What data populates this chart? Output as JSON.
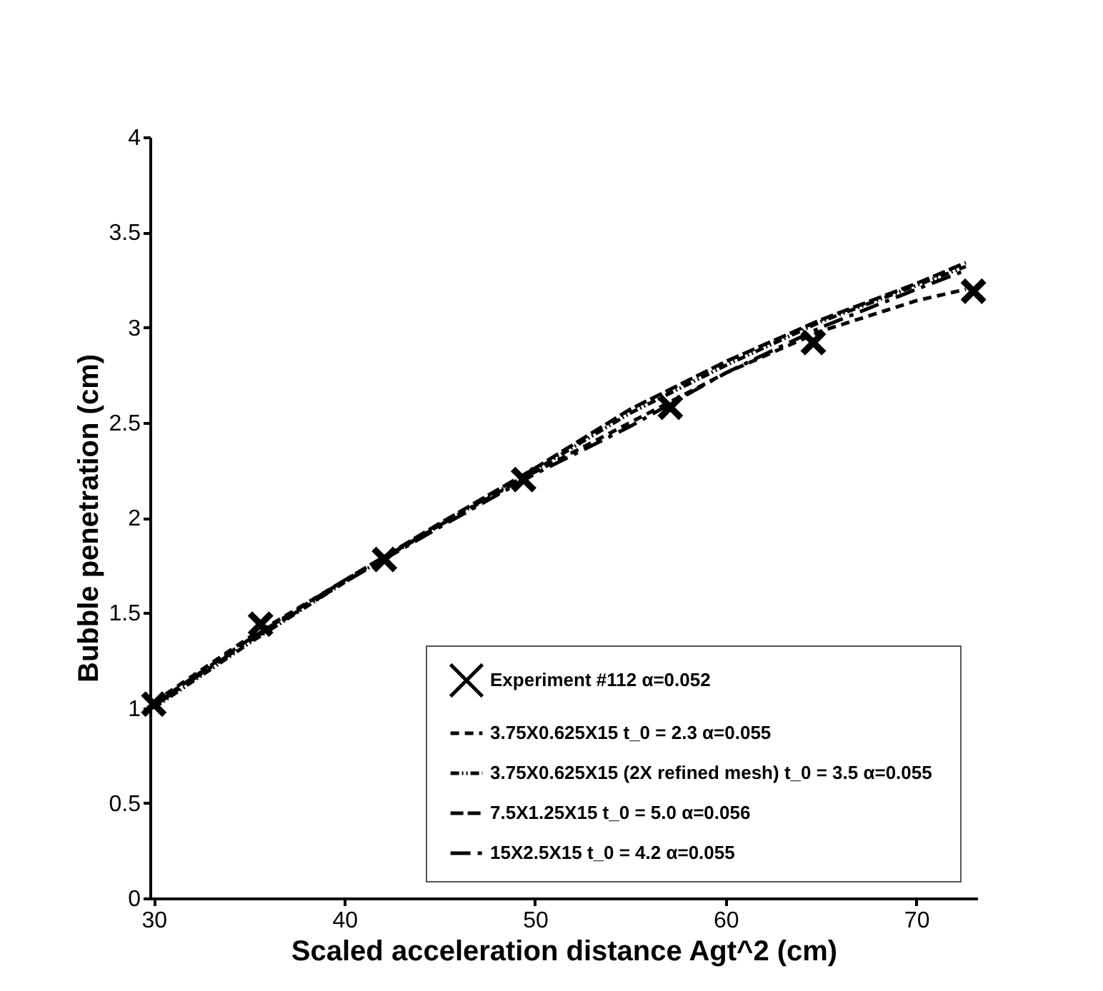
{
  "chart_data": {
    "type": "line",
    "xlabel": "Scaled acceleration distance Agt^2 (cm)",
    "ylabel": "Bubble penetration (cm)",
    "xlim": [
      29.8,
      73.2
    ],
    "ylim": [
      0,
      4
    ],
    "xticks": [
      30,
      40,
      50,
      60,
      70
    ],
    "yticks": [
      0,
      0.5,
      1,
      1.5,
      2,
      2.5,
      3,
      3.5,
      4
    ],
    "grid": false,
    "legend": "bottom right",
    "series": [
      {
        "name": "Experiment #112  α=0.052",
        "type": "scatter",
        "marker": "cross",
        "color": "#000000",
        "x": [
          30.0,
          35.6,
          42.1,
          49.4,
          57.1,
          64.6,
          73.0
        ],
        "values": [
          1.02,
          1.44,
          1.78,
          2.2,
          2.58,
          2.92,
          3.19
        ]
      },
      {
        "name": "3.75X0.625X15  t_0 = 2.3  α=0.055",
        "line_style": "dashed",
        "color": "#000000",
        "x": [
          30,
          35,
          40,
          45,
          50,
          55,
          60,
          65,
          70,
          72.6
        ],
        "values": [
          1.03,
          1.37,
          1.67,
          1.96,
          2.24,
          2.5,
          2.76,
          2.98,
          3.14,
          3.2
        ]
      },
      {
        "name": "3.75X0.625X15 (2X refined mesh)  t_0 = 3.5  α=0.055",
        "line_style": "dotted",
        "color": "#000000",
        "x": [
          30,
          35,
          40,
          45,
          50,
          55,
          60,
          65,
          70,
          72.6
        ],
        "values": [
          1.0,
          1.34,
          1.66,
          1.96,
          2.25,
          2.55,
          2.8,
          3.03,
          3.22,
          3.32
        ]
      },
      {
        "name": "7.5X1.25X15  t_0 = 5.0  α=0.056",
        "line_style": "dashed",
        "color": "#000000",
        "x": [
          30,
          35,
          40,
          45,
          50,
          55,
          60,
          65,
          70,
          72.6
        ],
        "values": [
          1.02,
          1.36,
          1.67,
          1.97,
          2.26,
          2.57,
          2.82,
          3.04,
          3.23,
          3.34
        ]
      },
      {
        "name": "15X2.5X15  t_0 = 4.2  α=0.055",
        "line_style": "dashed",
        "color": "#000000",
        "x": [
          30,
          35,
          40,
          45,
          50,
          55,
          60,
          65,
          70,
          72.6
        ],
        "values": [
          1.01,
          1.35,
          1.66,
          1.95,
          2.23,
          2.48,
          2.76,
          3.0,
          3.2,
          3.3
        ]
      }
    ]
  }
}
